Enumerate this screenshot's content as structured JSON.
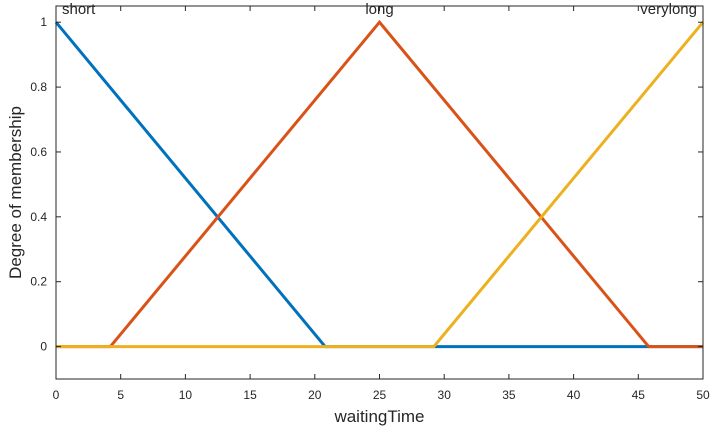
{
  "chart_data": {
    "type": "line",
    "xlabel": "waitingTime",
    "ylabel": "Degree of membership",
    "xlim": [
      0,
      50
    ],
    "ylim": [
      -0.1,
      1.05
    ],
    "xticks": [
      0,
      5,
      10,
      15,
      20,
      25,
      30,
      35,
      40,
      45,
      50
    ],
    "yticks": [
      0,
      0.2,
      0.4,
      0.6,
      0.8,
      1
    ],
    "grid": false,
    "legend": "none",
    "series": [
      {
        "name": "short",
        "color": "#0072BD",
        "x": [
          0,
          20.8,
          50
        ],
        "y": [
          1,
          0,
          0
        ]
      },
      {
        "name": "long",
        "color": "#D95319",
        "x": [
          0,
          4.2,
          25,
          45.8,
          50
        ],
        "y": [
          0,
          0,
          1,
          0,
          0
        ]
      },
      {
        "name": "verylong",
        "color": "#EDB120",
        "x": [
          0,
          29.2,
          50
        ],
        "y": [
          0,
          0,
          1
        ]
      }
    ]
  }
}
